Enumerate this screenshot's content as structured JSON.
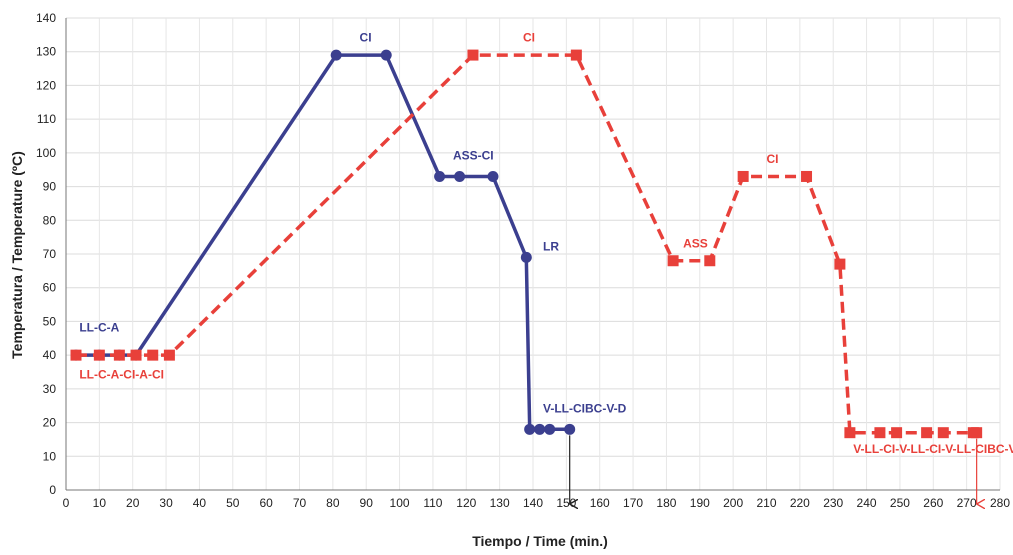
{
  "chart_data": {
    "type": "line",
    "title": "",
    "xlabel": "Tiempo / Time (min.)",
    "ylabel": "Temperatura / Temperature (ºC)",
    "xlim": [
      0,
      280
    ],
    "ylim": [
      0,
      140
    ],
    "x_ticks": [
      0,
      10,
      20,
      30,
      40,
      50,
      60,
      70,
      80,
      90,
      100,
      110,
      120,
      130,
      140,
      150,
      160,
      170,
      180,
      190,
      200,
      210,
      220,
      230,
      240,
      250,
      260,
      270,
      280
    ],
    "y_ticks": [
      0,
      10,
      20,
      30,
      40,
      50,
      60,
      70,
      80,
      90,
      100,
      110,
      120,
      130,
      140
    ],
    "grid": true,
    "series": [
      {
        "color": "#3b3f8f",
        "style": "solid",
        "marker": "circle",
        "points": [
          [
            3,
            40
          ],
          [
            10,
            40
          ],
          [
            16,
            40
          ],
          [
            21,
            40
          ],
          [
            81,
            129
          ],
          [
            96,
            129
          ],
          [
            112,
            93
          ],
          [
            118,
            93
          ],
          [
            128,
            93
          ],
          [
            138,
            69
          ],
          [
            139,
            18
          ],
          [
            142,
            18
          ],
          [
            145,
            18
          ],
          [
            151,
            18
          ]
        ]
      },
      {
        "color": "#e8403a",
        "style": "dashed",
        "marker": "square",
        "points": [
          [
            3,
            40
          ],
          [
            10,
            40
          ],
          [
            16,
            40
          ],
          [
            21,
            40
          ],
          [
            26,
            40
          ],
          [
            31,
            40
          ],
          [
            122,
            129
          ],
          [
            153,
            129
          ],
          [
            182,
            68
          ],
          [
            193,
            68
          ],
          [
            203,
            93
          ],
          [
            222,
            93
          ],
          [
            232,
            67
          ],
          [
            235,
            17
          ],
          [
            244,
            17
          ],
          [
            249,
            17
          ],
          [
            258,
            17
          ],
          [
            263,
            17
          ],
          [
            272,
            17
          ],
          [
            273,
            17
          ]
        ]
      }
    ],
    "annotations": [
      {
        "text": "LL-C-A",
        "x": 4,
        "y": 47,
        "color": "#3b3f8f"
      },
      {
        "text": "LL-C-A-CI-A-CI",
        "x": 4,
        "y": 33,
        "color": "#e8403a"
      },
      {
        "text": "CI",
        "x": 88,
        "y": 133,
        "color": "#3b3f8f"
      },
      {
        "text": "CI",
        "x": 137,
        "y": 133,
        "color": "#e8403a"
      },
      {
        "text": "ASS-CI",
        "x": 116,
        "y": 98,
        "color": "#3b3f8f"
      },
      {
        "text": "LR",
        "x": 143,
        "y": 71,
        "color": "#3b3f8f"
      },
      {
        "text": "V-LL-CIBC-V-D",
        "x": 143,
        "y": 23,
        "color": "#3b3f8f"
      },
      {
        "text": "ASS",
        "x": 185,
        "y": 72,
        "color": "#e8403a"
      },
      {
        "text": "CI",
        "x": 210,
        "y": 97,
        "color": "#e8403a"
      },
      {
        "text": "V-LL-CI-V-LL-CI-V-LL-CIBC-V-D",
        "x": 236,
        "y": 11,
        "color": "#e8403a"
      }
    ],
    "end_arrows": [
      {
        "x": 151,
        "from_y": 18,
        "color": "#222222"
      },
      {
        "x": 273,
        "from_y": 17,
        "color": "#e8403a"
      }
    ]
  }
}
